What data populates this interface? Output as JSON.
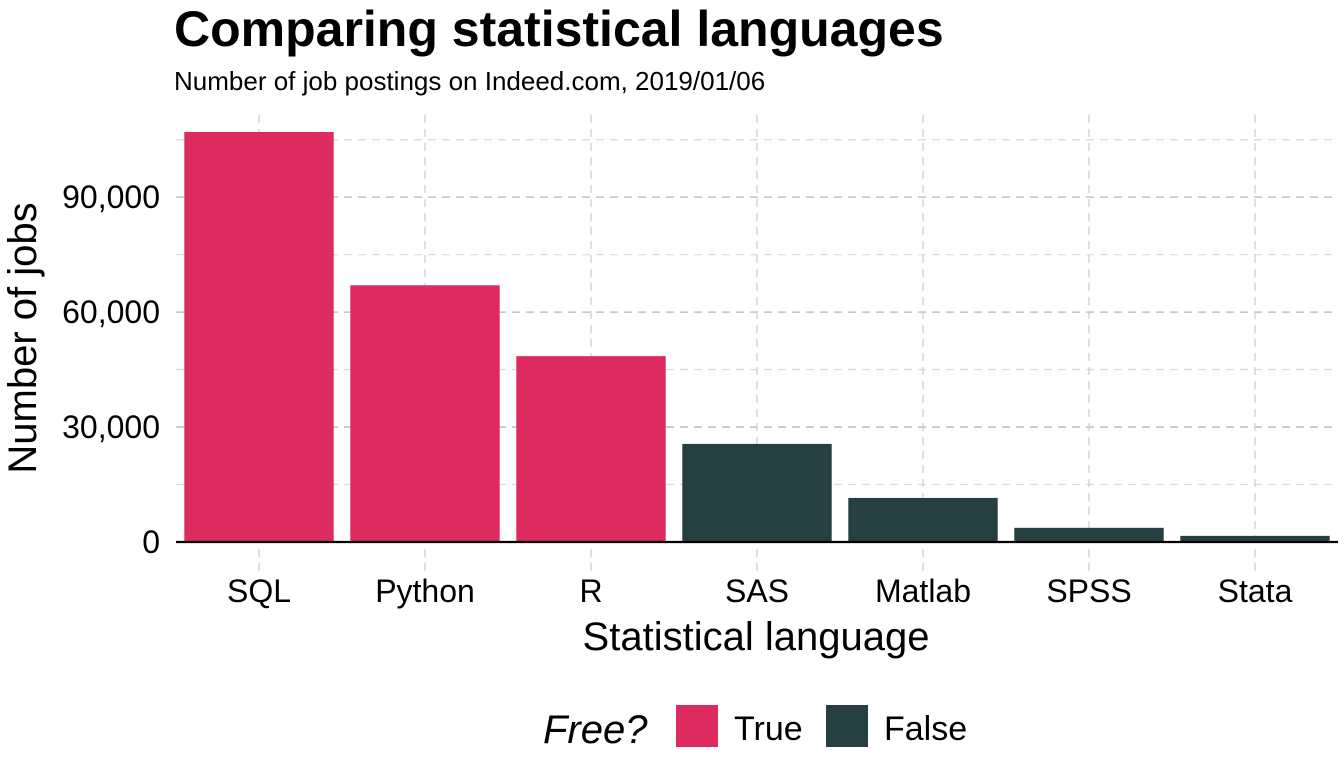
{
  "chart_data": {
    "type": "bar",
    "title": "Comparing statistical languages",
    "subtitle": "Number of job postings on Indeed.com, 2019/01/06",
    "xlabel": "Statistical language",
    "ylabel": "Number of jobs",
    "categories": [
      "SQL",
      "Python",
      "R",
      "SAS",
      "Matlab",
      "SPSS",
      "Stata"
    ],
    "values": [
      107000,
      67000,
      48500,
      25600,
      11500,
      3700,
      1600
    ],
    "free": [
      "True",
      "True",
      "True",
      "False",
      "False",
      "False",
      "False"
    ],
    "ylim": [
      0,
      107000
    ],
    "yticks": [
      0,
      30000,
      60000,
      90000
    ],
    "ytick_labels": [
      "0",
      "30,000",
      "60,000",
      "90,000"
    ],
    "grid": true,
    "legend": {
      "title": "Free?",
      "position": "bottom",
      "entries": [
        {
          "label": "True",
          "color": "#DD2A5F"
        },
        {
          "label": "False",
          "color": "#263F43"
        }
      ]
    },
    "colors": {
      "True": "#DD2A5F",
      "False": "#263F43"
    }
  }
}
